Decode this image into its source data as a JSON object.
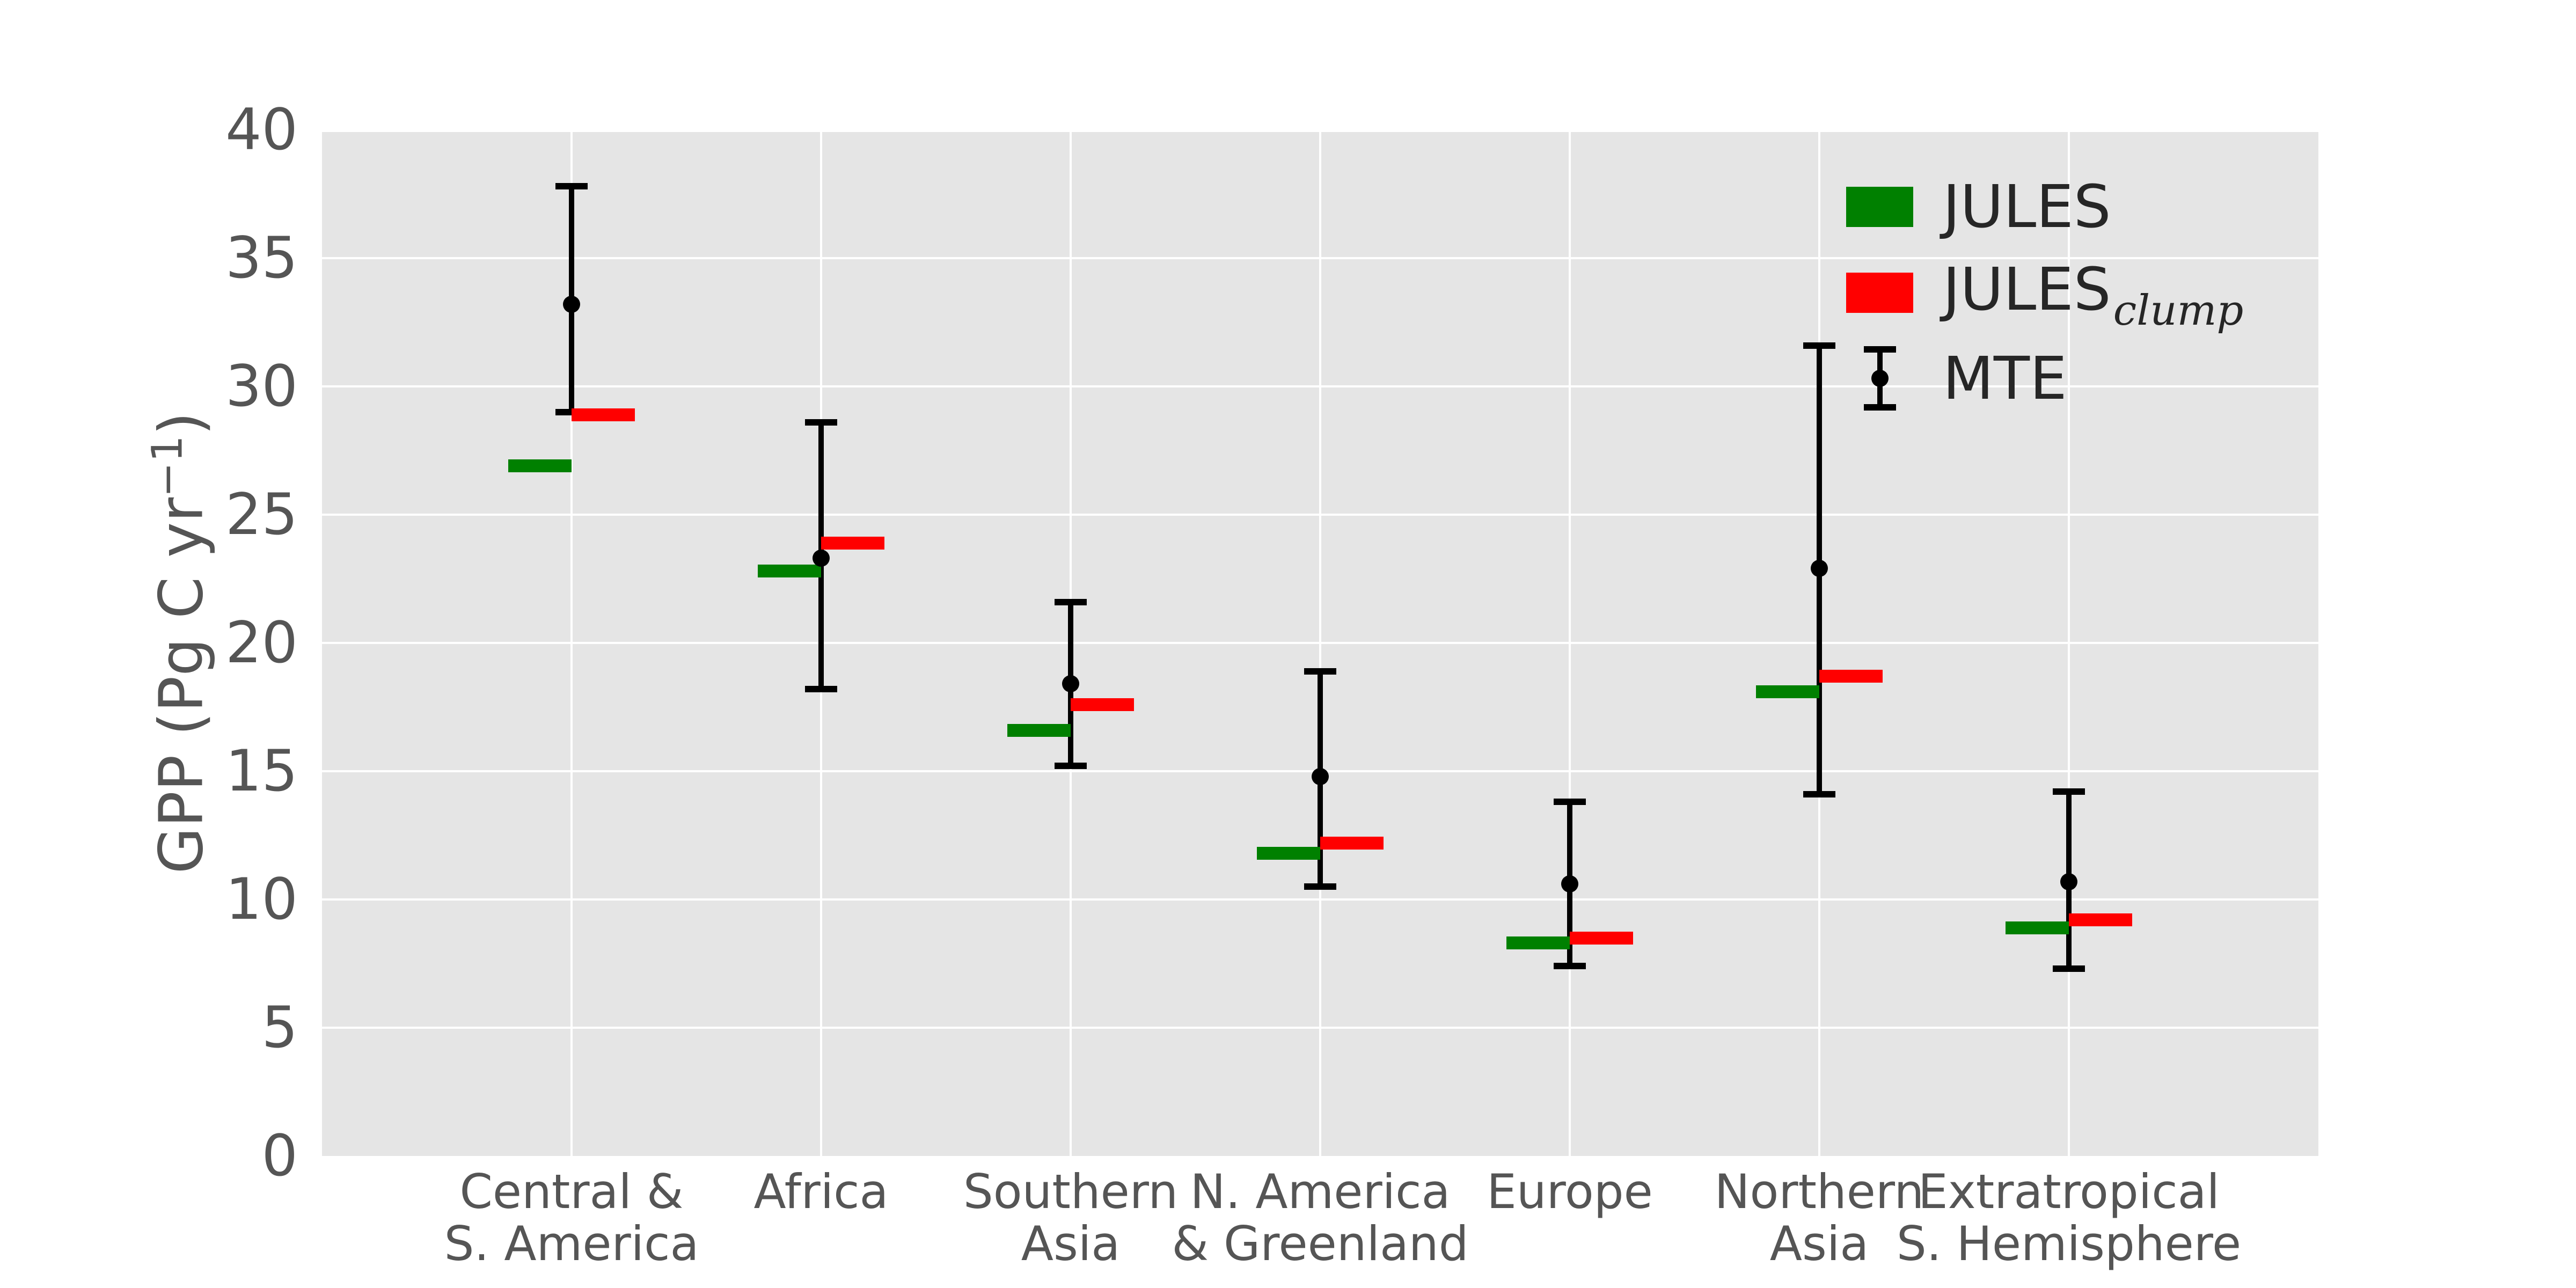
{
  "chart_data": {
    "type": "bar",
    "title": "",
    "xlabel": "",
    "ylabel": "GPP (Pg C yr⁻¹)",
    "ylabel_parts": {
      "pre": "GPP (Pg C yr",
      "sup": "−1",
      "post": ")"
    },
    "ylim": [
      0,
      40
    ],
    "yticks": [
      0,
      5,
      10,
      15,
      20,
      25,
      30,
      35,
      40
    ],
    "grid": true,
    "legend_position": "upper right",
    "categories": [
      [
        "Central &",
        "S. America"
      ],
      [
        "Africa"
      ],
      [
        "Southern",
        "Asia"
      ],
      [
        "N. America",
        "& Greenland"
      ],
      [
        "Europe"
      ],
      [
        "Northern",
        "Asia"
      ],
      [
        "Extratropical",
        "S. Hemisphere"
      ]
    ],
    "series": [
      {
        "name": "JULES",
        "style": "bar-marker",
        "color": "#008000",
        "values": [
          26.9,
          22.8,
          16.6,
          11.8,
          8.3,
          18.1,
          8.9
        ]
      },
      {
        "name": "JULES_clump",
        "label_base": "JULES",
        "label_sub": "clump",
        "style": "bar-marker",
        "color": "#ff0000",
        "values": [
          28.9,
          23.9,
          17.6,
          12.2,
          8.5,
          18.7,
          9.2
        ]
      },
      {
        "name": "MTE",
        "style": "point-errorbar",
        "color": "#000000",
        "values": [
          33.2,
          23.3,
          18.4,
          14.8,
          10.6,
          22.9,
          10.7
        ],
        "err_low": [
          29.0,
          18.2,
          15.2,
          10.5,
          7.4,
          14.1,
          7.3
        ],
        "err_high": [
          37.8,
          28.6,
          21.6,
          18.9,
          13.8,
          31.6,
          14.2
        ]
      }
    ]
  },
  "colors": {
    "plot_background": "#e5e5e5",
    "gridline": "#ffffff",
    "jules": "#008000",
    "jules_clump": "#ff0000",
    "mte": "#000000",
    "tick_text": "#555555",
    "legend_text": "#262626"
  }
}
